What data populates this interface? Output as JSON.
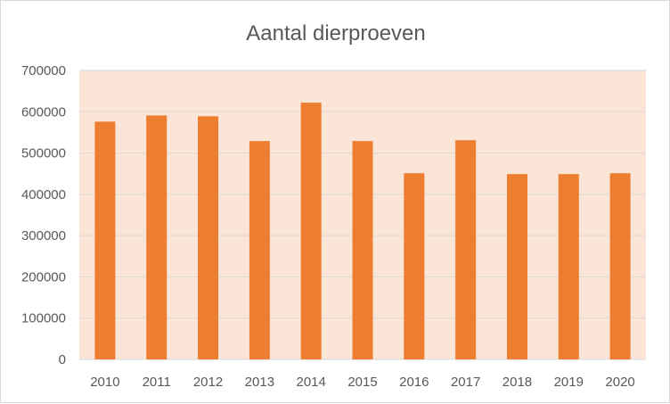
{
  "chart_data": {
    "type": "bar",
    "title": "Aantal dierproeven",
    "categories": [
      "2010",
      "2011",
      "2012",
      "2013",
      "2014",
      "2015",
      "2016",
      "2017",
      "2018",
      "2019",
      "2020"
    ],
    "values": [
      576000,
      591000,
      589000,
      529000,
      622000,
      529000,
      451000,
      531000,
      449000,
      449000,
      451000
    ],
    "ylim": [
      0,
      700000
    ],
    "yticks": [
      "0",
      "100000",
      "200000",
      "300000",
      "400000",
      "500000",
      "600000",
      "700000"
    ],
    "grid": true,
    "colors": {
      "bar": "#ed7d31",
      "plot_background": "#fbe5d6",
      "gridline": "#d9d9d9",
      "text": "#595959"
    }
  }
}
